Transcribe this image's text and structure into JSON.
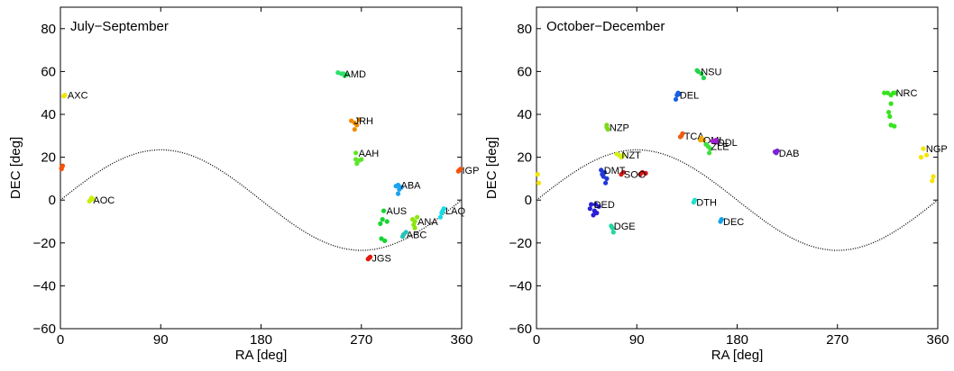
{
  "colors": {
    "ecliptic": "#000000",
    "frame": "#000000"
  },
  "chart_data": [
    {
      "type": "scatter",
      "title": "July−September",
      "xlabel": "RA [deg]",
      "ylabel": "DEC [deg]",
      "xlim": [
        0,
        360
      ],
      "ylim": [
        -60,
        90
      ],
      "xticks": [
        "0",
        "90",
        "180",
        "270",
        "360"
      ],
      "yticks": [
        "−60",
        "−40",
        "−20",
        "0",
        "20",
        "40",
        "60",
        "80"
      ],
      "grid": false,
      "legend": "none",
      "showers": [
        {
          "code": "AXC",
          "color": "#f2e400",
          "points": [
            [
              4,
              49
            ],
            [
              3,
              48.5
            ]
          ]
        },
        {
          "code": "AMD",
          "color": "#2ee06a",
          "points": [
            [
              252,
              59
            ],
            [
              255,
              58
            ],
            [
              257,
              58.5
            ],
            [
              249,
              59.5
            ],
            [
              254,
              59
            ]
          ]
        },
        {
          "code": "JRH",
          "color": "#f28a00",
          "points": [
            [
              261,
              37
            ],
            [
              264,
              36
            ],
            [
              266,
              35
            ],
            [
              264,
              33
            ],
            [
              268,
              37.5
            ]
          ]
        },
        {
          "code": "AAH",
          "color": "#5de62a",
          "points": [
            [
              265,
              22
            ],
            [
              265,
              19
            ],
            [
              266,
              17
            ],
            [
              268,
              18.5
            ],
            [
              270,
              19
            ]
          ]
        },
        {
          "code": "AOC",
          "color": "#c7ef0a",
          "points": [
            [
              27,
              0
            ],
            [
              28,
              1
            ],
            [
              29,
              0.5
            ],
            [
              26,
              -0.5
            ]
          ]
        },
        {
          "code": "ABA",
          "color": "#1aa3ef",
          "points": [
            [
              303,
              7
            ],
            [
              304,
              5
            ],
            [
              306,
              6
            ],
            [
              301,
              6.5
            ],
            [
              303,
              3
            ]
          ]
        },
        {
          "code": "AUS",
          "color": "#15d431",
          "points": [
            [
              290,
              -5
            ],
            [
              289,
              -9
            ],
            [
              287,
              -11
            ],
            [
              293,
              -10
            ],
            [
              288,
              -18
            ],
            [
              291,
              -19
            ]
          ]
        },
        {
          "code": "ABC",
          "color": "#24c5b4",
          "points": [
            [
              308,
              -16
            ],
            [
              310,
              -15
            ],
            [
              307,
              -17
            ]
          ]
        },
        {
          "code": "ANA",
          "color": "#8ce60e",
          "points": [
            [
              318,
              -10
            ],
            [
              316,
              -9
            ],
            [
              320,
              -8
            ],
            [
              317,
              -11.5
            ],
            [
              318,
              -13
            ]
          ]
        },
        {
          "code": "LAQ",
          "color": "#16dbe6",
          "points": [
            [
              343,
              -5
            ],
            [
              342,
              -6
            ],
            [
              341,
              -8
            ],
            [
              344,
              -4
            ]
          ]
        },
        {
          "code": "JGS",
          "color": "#e21a0c",
          "points": [
            [
              277,
              -27
            ],
            [
              278,
              -26.5
            ],
            [
              276,
              -27.5
            ]
          ]
        },
        {
          "code": "IGP",
          "color": "#f5520a",
          "points": [
            [
              358,
              14
            ],
            [
              357,
              13.5
            ],
            [
              359,
              14.5
            ]
          ]
        },
        {
          "code": "",
          "color": "#f5520a",
          "points": [
            [
              1,
              15
            ],
            [
              2,
              16
            ],
            [
              1,
              14.5
            ]
          ]
        }
      ]
    },
    {
      "type": "scatter",
      "title": "October−December",
      "xlabel": "RA [deg]",
      "ylabel": "DEC [deg]",
      "xlim": [
        0,
        360
      ],
      "ylim": [
        -60,
        90
      ],
      "xticks": [
        "0",
        "90",
        "180",
        "270",
        "360"
      ],
      "yticks": [
        "−60",
        "−40",
        "−20",
        "0",
        "20",
        "40",
        "60",
        "80"
      ],
      "grid": false,
      "legend": "none",
      "showers": [
        {
          "code": "NSU",
          "color": "#22d64a",
          "points": [
            [
              145,
              60
            ],
            [
              148,
              59
            ],
            [
              150,
              57
            ],
            [
              144,
              60.5
            ]
          ]
        },
        {
          "code": "DEL",
          "color": "#1662e5",
          "points": [
            [
              126,
              49
            ],
            [
              125,
              47
            ],
            [
              127,
              50
            ],
            [
              128,
              49.5
            ]
          ]
        },
        {
          "code": "NZP",
          "color": "#7fd81c",
          "points": [
            [
              63,
              34
            ],
            [
              64,
              33
            ],
            [
              63,
              35
            ]
          ]
        },
        {
          "code": "NZT",
          "color": "#d5f01a",
          "points": [
            [
              74,
              21
            ],
            [
              76,
              20
            ],
            [
              72,
              21.5
            ],
            [
              78,
              21
            ]
          ]
        },
        {
          "code": "TCA",
          "color": "#f05a10",
          "points": [
            [
              130,
              30
            ],
            [
              131,
              31
            ],
            [
              129,
              29.5
            ]
          ]
        },
        {
          "code": "OML",
          "color": "#f0a80c",
          "points": [
            [
              147,
              28
            ],
            [
              148,
              29
            ],
            [
              150,
              28
            ]
          ]
        },
        {
          "code": "DDL",
          "color": "#a21fd6",
          "points": [
            [
              160,
              27
            ],
            [
              161,
              28
            ],
            [
              162,
              27
            ],
            [
              158,
              27.5
            ]
          ]
        },
        {
          "code": "ZLE",
          "color": "#3fe03e",
          "points": [
            [
              154,
              25
            ],
            [
              156,
              24
            ],
            [
              152,
              26
            ],
            [
              155,
              22
            ]
          ]
        },
        {
          "code": "DAB",
          "color": "#7b22d6",
          "points": [
            [
              215,
              22
            ],
            [
              216,
              23
            ],
            [
              214,
              22.5
            ]
          ]
        },
        {
          "code": "NRC",
          "color": "#36e31e",
          "points": [
            [
              320,
              50
            ],
            [
              318,
              49
            ],
            [
              315,
              50
            ],
            [
              312,
              50
            ],
            [
              322,
              50
            ],
            [
              318,
              45
            ],
            [
              316,
              41
            ],
            [
              317,
              39
            ],
            [
              318,
              35
            ],
            [
              321,
              34.5
            ]
          ]
        },
        {
          "code": "NGP",
          "color": "#f5e400",
          "points": [
            [
              347,
              24
            ],
            [
              345,
              20
            ],
            [
              350,
              21
            ],
            [
              356,
              11
            ],
            [
              355,
              9
            ]
          ]
        },
        {
          "code": "",
          "color": "#f5e400",
          "points": [
            [
              1,
              12
            ],
            [
              2,
              8
            ]
          ]
        },
        {
          "code": "SOO",
          "color": "#d81818",
          "points": [
            [
              76,
              12
            ],
            [
              78,
              13
            ],
            [
              93,
              12
            ],
            [
              95,
              13
            ],
            [
              98,
              12.5
            ]
          ]
        },
        {
          "code": "DMT",
          "color": "#2138d8",
          "points": [
            [
              58,
              14
            ],
            [
              61,
              13
            ],
            [
              60,
              11
            ],
            [
              63,
              10
            ],
            [
              62,
              8
            ],
            [
              59,
              12
            ]
          ]
        },
        {
          "code": "DED",
          "color": "#2a1fd6",
          "points": [
            [
              49,
              -2
            ],
            [
              48,
              -4
            ],
            [
              52,
              -5
            ],
            [
              54,
              -6
            ],
            [
              56,
              -3
            ],
            [
              51,
              -7
            ],
            [
              53,
              -2
            ]
          ]
        },
        {
          "code": "DGE",
          "color": "#22d6a0",
          "points": [
            [
              67,
              -12
            ],
            [
              69,
              -15
            ],
            [
              68,
              -13
            ]
          ]
        },
        {
          "code": "DTH",
          "color": "#22e0d0",
          "points": [
            [
              141,
              -1
            ],
            [
              142,
              0
            ]
          ]
        },
        {
          "code": "DEC",
          "color": "#14a2e8",
          "points": [
            [
              165,
              -10
            ],
            [
              166,
              -9
            ]
          ]
        }
      ]
    }
  ]
}
